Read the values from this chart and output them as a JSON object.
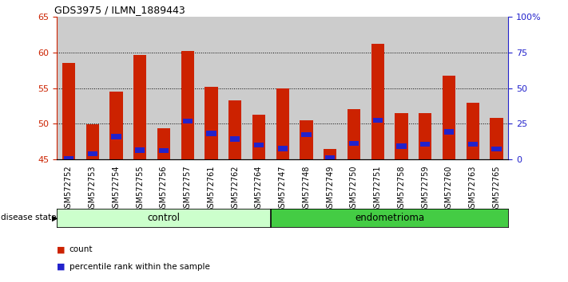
{
  "title": "GDS3975 / ILMN_1889443",
  "samples": [
    "GSM572752",
    "GSM572753",
    "GSM572754",
    "GSM572755",
    "GSM572756",
    "GSM572757",
    "GSM572761",
    "GSM572762",
    "GSM572764",
    "GSM572747",
    "GSM572748",
    "GSM572749",
    "GSM572750",
    "GSM572751",
    "GSM572758",
    "GSM572759",
    "GSM572760",
    "GSM572763",
    "GSM572765"
  ],
  "count_values": [
    58.5,
    49.9,
    54.5,
    59.7,
    49.4,
    60.2,
    55.2,
    53.3,
    51.3,
    55.0,
    50.5,
    46.5,
    52.0,
    61.2,
    51.5,
    51.5,
    56.7,
    53.0,
    50.8
  ],
  "percentile_values": [
    45.15,
    45.75,
    48.2,
    46.3,
    46.25,
    50.4,
    48.65,
    47.85,
    47.05,
    46.5,
    48.45,
    45.2,
    47.2,
    50.45,
    46.85,
    47.1,
    48.85,
    47.1,
    46.45
  ],
  "n_control": 9,
  "n_endometrioma": 10,
  "ymin": 45,
  "ymax": 65,
  "yticks": [
    45,
    50,
    55,
    60,
    65
  ],
  "y_right_ticks": [
    0,
    25,
    50,
    75,
    100
  ],
  "y_right_labels": [
    "0",
    "25",
    "50",
    "75",
    "100%"
  ],
  "bar_color": "#cc2200",
  "percentile_color": "#2222cc",
  "control_bg": "#ccffcc",
  "endometrioma_bg": "#44cc44",
  "sample_bg": "#cccccc",
  "bar_width": 0.55,
  "label_control": "control",
  "label_endometrioma": "endometrioma",
  "legend_count": "count",
  "legend_percentile": "percentile rank within the sample",
  "disease_state_label": "disease state",
  "ylabel_color": "#cc2200",
  "ylabel_right_color": "#2222cc",
  "tick_label_fontsize": 7.0,
  "grid_dotted_values": [
    50,
    55,
    60
  ]
}
